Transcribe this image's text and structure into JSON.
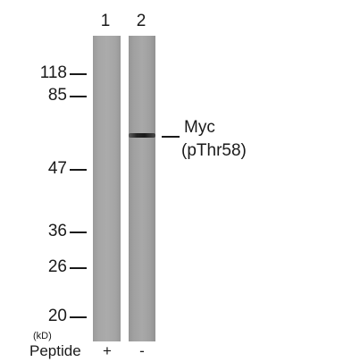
{
  "lanes": {
    "numbers": [
      "1",
      "2"
    ]
  },
  "markers": {
    "values": [
      "118",
      "85",
      "47",
      "36",
      "26",
      "20"
    ],
    "unit": "(kD)"
  },
  "peptide": {
    "label": "Peptide",
    "lane1_sign": "+",
    "lane2_sign": "-"
  },
  "band_label": {
    "line1": "Myc",
    "line2": "(pThr58)"
  }
}
